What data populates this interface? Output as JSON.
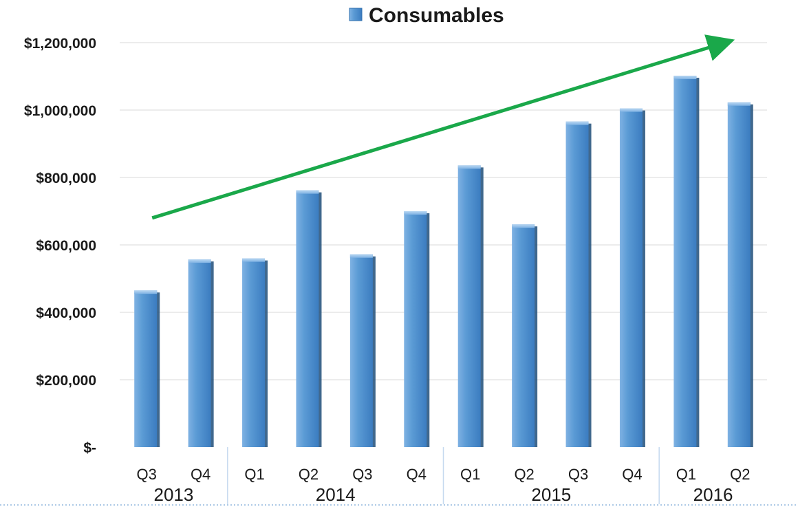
{
  "chart_data": {
    "type": "bar",
    "legend": {
      "position": "top",
      "entries": [
        "Consumables"
      ]
    },
    "series": [
      {
        "name": "Consumables",
        "values": [
          465000,
          557000,
          560000,
          762000,
          572000,
          700000,
          836000,
          661000,
          966000,
          1005000,
          1102000,
          1023000
        ]
      }
    ],
    "categories": [
      "Q3",
      "Q4",
      "Q1",
      "Q2",
      "Q3",
      "Q4",
      "Q1",
      "Q2",
      "Q3",
      "Q4",
      "Q1",
      "Q2"
    ],
    "year_groups": [
      {
        "label": "2013",
        "count": 2
      },
      {
        "label": "2014",
        "count": 4
      },
      {
        "label": "2015",
        "count": 4
      },
      {
        "label": "2016",
        "count": 2
      }
    ],
    "y_ticks": [
      {
        "value": 0,
        "label": "$-"
      },
      {
        "value": 200000,
        "label": "$200,000"
      },
      {
        "value": 400000,
        "label": "$400,000"
      },
      {
        "value": 600000,
        "label": "$600,000"
      },
      {
        "value": 800000,
        "label": "$800,000"
      },
      {
        "value": 1000000,
        "label": "$1,000,000"
      },
      {
        "value": 1200000,
        "label": "$1,200,000"
      }
    ],
    "ylim": [
      0,
      1200000
    ],
    "grid": true,
    "trend_arrow": {
      "start": [
        0,
        680000
      ],
      "end": [
        11,
        1200000
      ]
    },
    "colors": {
      "bar_light": "#8fbde8",
      "bar_main": "#5b9bd5",
      "bar_dark": "#2f6fae",
      "bar_side": "#1f4e79",
      "grid": "#e6e6e6",
      "arrow": "#1aa84a",
      "separator": "#c5d9ef"
    }
  }
}
